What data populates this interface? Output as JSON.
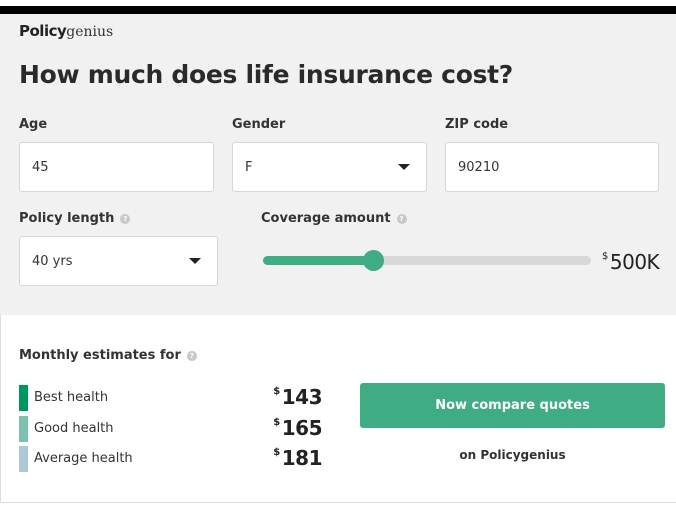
{
  "brand": {
    "bold": "Policy",
    "light": "genius"
  },
  "title": "How much does life insurance cost?",
  "form": {
    "age": {
      "label": "Age",
      "value": "45"
    },
    "gender": {
      "label": "Gender",
      "value": "F"
    },
    "zip": {
      "label": "ZIP code",
      "value": "90210"
    },
    "policy_length": {
      "label": "Policy length",
      "value": "40 yrs"
    },
    "coverage": {
      "label": "Coverage amount",
      "currency": "$",
      "value": "500K",
      "slider_percent": 33.5
    }
  },
  "estimates": {
    "title": "Monthly estimates for",
    "rows": [
      {
        "label": "Best health",
        "currency": "$",
        "price": "143",
        "color": "#00965e"
      },
      {
        "label": "Good health",
        "currency": "$",
        "price": "165",
        "color": "#7fbfae"
      },
      {
        "label": "Average health",
        "currency": "$",
        "price": "181",
        "color": "#aec8d6"
      }
    ]
  },
  "cta": {
    "label": "Now compare quotes",
    "sub": "on Policygenius"
  },
  "colors": {
    "accent": "#3fac83"
  }
}
